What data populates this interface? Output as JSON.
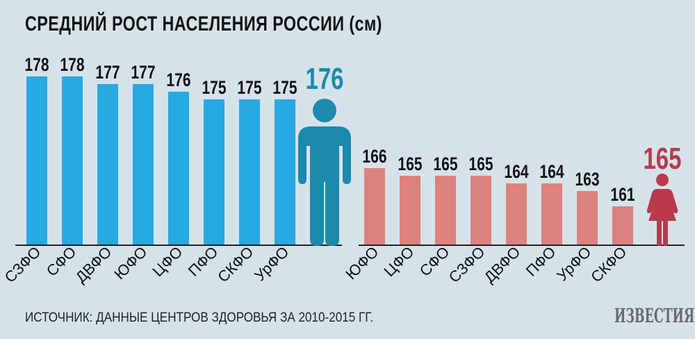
{
  "title": "СРЕДНИЙ РОСТ НАСЕЛЕНИЯ РОССИИ (см)",
  "source": "ИСТОЧНИК: ДАННЫЕ ЦЕНТРОВ ЗДОРОВЬЯ ЗА 2010-2015 ГГ.",
  "logo": "ИЗВЕСТИЯ",
  "colors": {
    "men_bar": "#27a9e1",
    "men_icon": "#1b8aad",
    "women_bar": "#dc817c",
    "women_icon": "#b83a4b"
  },
  "chart_data": [
    {
      "type": "bar",
      "title": "Men",
      "categories": [
        "СЗФО",
        "СФО",
        "ДВФО",
        "ЮФО",
        "ЦФО",
        "ПФО",
        "СКФО",
        "УрФО"
      ],
      "values": [
        178,
        178,
        177,
        177,
        176,
        175,
        175,
        175
      ],
      "average": 176,
      "icon": "man-icon"
    },
    {
      "type": "bar",
      "title": "Women",
      "categories": [
        "ЮФО",
        "ЦФО",
        "СФО",
        "СЗФО",
        "ДВФО",
        "ПФО",
        "УрФО",
        "СКФО"
      ],
      "values": [
        166,
        165,
        165,
        165,
        164,
        164,
        163,
        161
      ],
      "average": 165,
      "icon": "woman-icon"
    }
  ]
}
